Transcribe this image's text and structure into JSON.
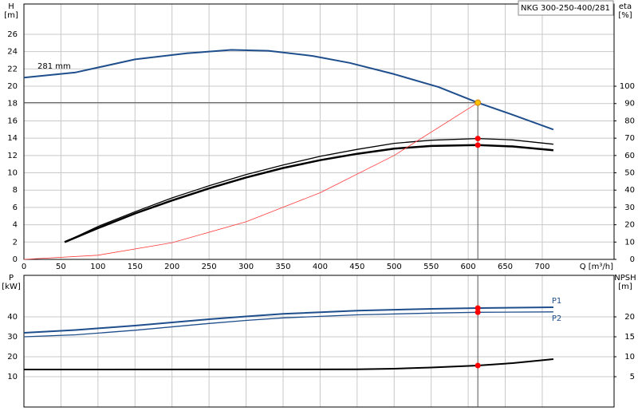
{
  "chart_data": [
    {
      "type": "line",
      "label_box": "NKG 300-250-400/281",
      "y_label": "H",
      "y_unit": "[m]",
      "y2_label": "eta",
      "y2_unit": "[%]",
      "x_label": "Q [m³/h]",
      "xlim": [
        0,
        797
      ],
      "xticks": [
        0,
        50,
        100,
        150,
        200,
        250,
        300,
        350,
        400,
        450,
        500,
        550,
        600,
        650,
        700
      ],
      "ylim": [
        0,
        29.5
      ],
      "yticks": [
        0,
        2,
        4,
        6,
        8,
        10,
        12,
        14,
        16,
        18,
        20,
        22,
        24,
        26
      ],
      "y2lim": [
        0,
        147.5
      ],
      "y2ticks": [
        0,
        10,
        20,
        30,
        40,
        50,
        60,
        70,
        80,
        90,
        100
      ],
      "grid": true,
      "crosshair": true,
      "series": [
        {
          "name": "281 mm",
          "label_pos": "start",
          "color": "#1f4e8c",
          "width": 2,
          "x": [
            0,
            70,
            150,
            220,
            280,
            330,
            390,
            440,
            500,
            560,
            613,
            660,
            715
          ],
          "values": [
            21.0,
            21.6,
            23.1,
            23.8,
            24.2,
            24.1,
            23.5,
            22.7,
            21.4,
            19.9,
            18.1,
            16.7,
            15.0
          ]
        },
        {
          "color": "#000000",
          "width": 1.3,
          "axis": "y2",
          "x": [
            55,
            100,
            150,
            200,
            250,
            300,
            350,
            400,
            450,
            500,
            550,
            613,
            660,
            715
          ],
          "values": [
            10,
            19,
            27.5,
            35.5,
            42.5,
            49,
            54.5,
            59.5,
            63.5,
            67,
            68.8,
            69.8,
            69,
            66.5
          ]
        },
        {
          "color": "#000000",
          "width": 2.5,
          "axis": "y2",
          "x": [
            55,
            100,
            150,
            200,
            250,
            300,
            350,
            400,
            450,
            500,
            550,
            613,
            660,
            715
          ],
          "values": [
            10,
            18,
            26.5,
            34,
            41,
            47.3,
            52.8,
            57.3,
            61,
            64,
            65.5,
            66,
            65.2,
            63
          ]
        },
        {
          "color": "#ff3b3b",
          "width": 0.8,
          "x": [
            0,
            100,
            200,
            300,
            400,
            500,
            613
          ],
          "values": [
            0,
            0.48,
            1.93,
            4.34,
            7.7,
            12.0,
            18.1
          ]
        }
      ],
      "markers": [
        {
          "x": 613,
          "y": 18.1,
          "color": "#ffc000"
        },
        {
          "x": 613,
          "y": 69.8,
          "color": "#ff0000",
          "axis": "y2"
        },
        {
          "x": 613,
          "y": 66,
          "color": "#ff0000",
          "axis": "y2"
        }
      ]
    },
    {
      "type": "line",
      "share_x": true,
      "y_label": "P",
      "y_unit": "[kW]",
      "y2_label": "NPSH",
      "y2_unit": "[m]",
      "xlim": [
        0,
        797
      ],
      "ylim": [
        -5.2,
        60.8
      ],
      "yticks": [
        10,
        20,
        30,
        40
      ],
      "y2lim": [
        -2.6,
        30.4
      ],
      "y2ticks": [
        5,
        10,
        15,
        20
      ],
      "grid": true,
      "vline": 613,
      "series": [
        {
          "name": "P1",
          "label_pos": "end",
          "color": "#1f4e8c",
          "width": 2,
          "x": [
            0,
            70,
            150,
            250,
            300,
            350,
            450,
            550,
            613,
            715
          ],
          "values": [
            32,
            33.4,
            35.6,
            38.8,
            40.2,
            41.5,
            43.1,
            44,
            44.4,
            44.8
          ]
        },
        {
          "name": "P2",
          "label_pos": "end",
          "color": "#1f4e8c",
          "width": 1.3,
          "x": [
            0,
            70,
            150,
            250,
            300,
            350,
            450,
            550,
            613,
            715
          ],
          "values": [
            30,
            31,
            33.3,
            36.7,
            38.2,
            39.5,
            41,
            41.9,
            42.3,
            42.5
          ]
        },
        {
          "color": "#000000",
          "width": 2,
          "axis": "y2",
          "x": [
            0,
            450,
            500,
            550,
            613,
            660,
            715
          ],
          "values": [
            6.8,
            6.85,
            7.0,
            7.3,
            7.8,
            8.4,
            9.4
          ]
        }
      ],
      "markers": [
        {
          "x": 613,
          "y": 44.4,
          "color": "#ff0000"
        },
        {
          "x": 613,
          "y": 42.3,
          "color": "#ff0000"
        },
        {
          "x": 613,
          "y": 7.8,
          "color": "#ff0000",
          "axis": "y2"
        }
      ]
    }
  ]
}
